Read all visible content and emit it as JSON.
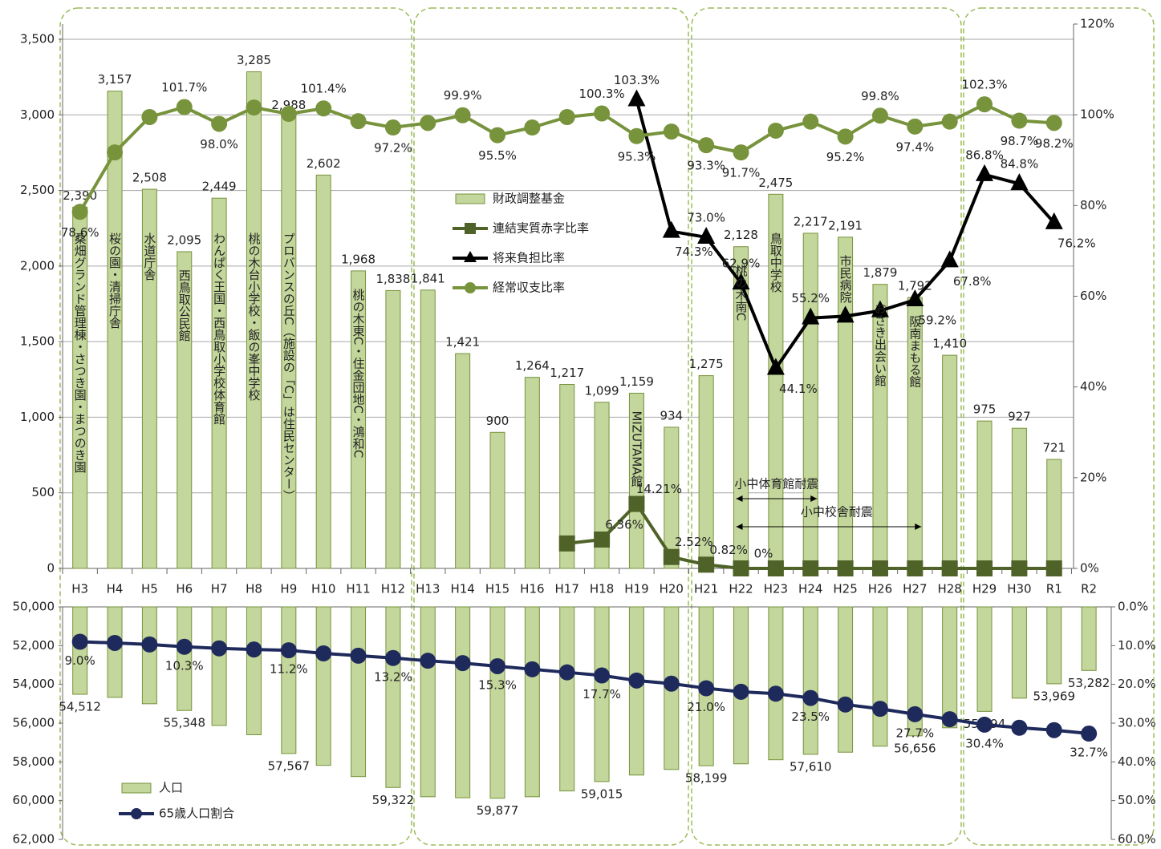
{
  "chart_data": [
    {
      "type": "combo",
      "categories": [
        "H3",
        "H4",
        "H5",
        "H6",
        "H7",
        "H8",
        "H9",
        "H10",
        "H11",
        "H12",
        "H13",
        "H14",
        "H15",
        "H16",
        "H17",
        "H18",
        "H19",
        "H20",
        "H21",
        "H22",
        "H23",
        "H24",
        "H25",
        "H26",
        "H27",
        "H28",
        "H29",
        "H30",
        "R1",
        "R2"
      ],
      "ylim": [
        0,
        3500
      ],
      "yticks": [
        0,
        500,
        {
          "value": 1000,
          "label": "1,000"
        },
        {
          "value": 1500,
          "label": "1,500"
        },
        {
          "value": 2000,
          "label": "2,000"
        },
        {
          "value": 2500,
          "label": "2,500"
        },
        {
          "value": 3000,
          "label": "3,000"
        },
        {
          "value": 3500,
          "label": "3,500"
        }
      ],
      "y2lim": [
        0,
        120
      ],
      "y2ticks": [
        {
          "value": 0,
          "label": "0%"
        },
        {
          "value": 20,
          "label": "20%"
        },
        {
          "value": 40,
          "label": "40%"
        },
        {
          "value": 60,
          "label": "60%"
        },
        {
          "value": 80,
          "label": "80%"
        },
        {
          "value": 100,
          "label": "100%"
        },
        {
          "value": 120,
          "label": "120%"
        }
      ],
      "grid": true,
      "legend": "center",
      "series": [
        {
          "name": "財政調整基金",
          "kind": "bar",
          "color": "#c3d69b",
          "values": [
            2390,
            3157,
            2508,
            2095,
            2449,
            3285,
            2988,
            2602,
            1968,
            1838,
            1841,
            1421,
            900,
            1264,
            1217,
            1099,
            1159,
            934,
            1275,
            2128,
            2475,
            2217,
            2191,
            1879,
            1792,
            1410,
            975,
            927,
            721,
            null
          ],
          "value_labels": [
            "2,390",
            "3,157",
            "2,508",
            "2,095",
            "2,449",
            "3,285",
            "2,988",
            "2,602",
            "1,968",
            "1,838",
            "1,841",
            "1,421",
            "900",
            "1,264",
            "1,217",
            "1,099",
            "1,159",
            "934",
            "1,275",
            "2,128",
            "2,475",
            "2,217",
            "2,191",
            "1,879",
            "1,792",
            "1,410",
            "975",
            "927",
            "721",
            null
          ]
        },
        {
          "name": "連結実質赤字比率",
          "kind": "line",
          "marker": "square",
          "axis": "y2",
          "color": "#4f6228",
          "values": [
            null,
            null,
            null,
            null,
            null,
            null,
            null,
            null,
            null,
            null,
            null,
            null,
            null,
            null,
            5.5,
            6.36,
            14.21,
            2.52,
            0.82,
            0,
            0,
            0,
            0,
            0,
            0,
            0,
            0,
            0,
            0,
            null
          ],
          "value_labels": [
            null,
            null,
            null,
            null,
            null,
            null,
            null,
            null,
            null,
            null,
            null,
            null,
            null,
            null,
            null,
            "6.36%",
            "14.21%",
            "2.52%",
            "0.82%",
            "0%",
            null,
            null,
            null,
            null,
            null,
            null,
            null,
            null,
            null,
            null
          ]
        },
        {
          "name": "将来負担比率",
          "kind": "line",
          "marker": "triangle",
          "axis": "y2",
          "color": "#000000",
          "values": [
            null,
            null,
            null,
            null,
            null,
            null,
            null,
            null,
            null,
            null,
            null,
            null,
            null,
            null,
            null,
            null,
            103.3,
            74.3,
            73.0,
            62.9,
            44.1,
            55.2,
            55.6,
            56.8,
            59.2,
            67.8,
            86.8,
            84.8,
            76.2,
            null
          ],
          "value_labels": [
            null,
            null,
            null,
            null,
            null,
            null,
            null,
            null,
            null,
            null,
            null,
            null,
            null,
            null,
            null,
            null,
            "103.3%",
            "74.3%",
            "73.0%",
            "62.9%",
            "44.1%",
            "55.2%",
            null,
            null,
            "59.2%",
            "67.8%",
            "86.8%",
            "84.8%",
            "76.2%",
            null
          ]
        },
        {
          "name": "経常収支比率",
          "kind": "line",
          "marker": "circle",
          "axis": "y2",
          "color": "#77933c",
          "values": [
            78.6,
            91.7,
            99.5,
            101.7,
            98.0,
            101.6,
            100.2,
            101.4,
            98.6,
            97.2,
            98.2,
            99.9,
            95.5,
            97.2,
            99.5,
            100.3,
            95.3,
            96.3,
            93.3,
            91.7,
            96.5,
            98.5,
            95.2,
            99.8,
            97.4,
            98.5,
            102.3,
            98.7,
            98.2,
            null
          ],
          "value_labels": [
            "78.6%",
            null,
            null,
            "101.7%",
            "98.0%",
            null,
            null,
            "101.4%",
            null,
            "97.2%",
            null,
            "99.9%",
            "95.5%",
            null,
            null,
            "100.3%",
            "95.3%",
            null,
            "93.3%",
            "91.7%",
            null,
            null,
            "95.2%",
            "99.8%",
            "97.4%",
            null,
            "102.3%",
            "98.7%",
            "98.2%",
            null
          ]
        }
      ],
      "bar_notes": [
        {
          "category": "H3",
          "text": "桑畑グランド管理棟・さつき園・まつのき園"
        },
        {
          "category": "H4",
          "text": "桜の園・清掃庁舎"
        },
        {
          "category": "H5",
          "text": "水道庁舎"
        },
        {
          "category": "H6",
          "text": "西鳥取公民館"
        },
        {
          "category": "H7",
          "text": "わんぱく王国・西鳥取小学校体育館"
        },
        {
          "category": "H8",
          "text": "桃の木台小学校・飯の峯中学校"
        },
        {
          "category": "H9",
          "text": "プロバンスの丘C（施設の「C」は住民センター）"
        },
        {
          "category": "H11",
          "text": "桃の木東C・住金団地C・鴻和C"
        },
        {
          "category": "H19",
          "text": "MIZUTAMA館"
        },
        {
          "category": "H22",
          "text": "桃の木南C"
        },
        {
          "category": "H23",
          "text": "鳥取中学校"
        },
        {
          "category": "H25",
          "text": "市民病院"
        },
        {
          "category": "H26",
          "text": "おさき出会い館"
        },
        {
          "category": "H27",
          "text": "阪南まもる館"
        }
      ],
      "spans": [
        {
          "text": "小中体育館耐震",
          "from": "H22",
          "to": "H24"
        },
        {
          "text": "小中校舎耐震",
          "from": "H22",
          "to": "H27"
        }
      ]
    },
    {
      "type": "combo",
      "inverted": true,
      "ylim": [
        50000,
        62000
      ],
      "yticks": [
        {
          "value": 50000,
          "label": "50,000"
        },
        {
          "value": 52000,
          "label": "52,000"
        },
        {
          "value": 54000,
          "label": "54,000"
        },
        {
          "value": 56000,
          "label": "56,000"
        },
        {
          "value": 58000,
          "label": "58,000"
        },
        {
          "value": 60000,
          "label": "60,000"
        },
        {
          "value": 62000,
          "label": "62,000"
        }
      ],
      "y2lim": [
        0,
        60
      ],
      "y2ticks": [
        {
          "value": 0,
          "label": "0.0%"
        },
        {
          "value": 10,
          "label": "10.0%"
        },
        {
          "value": 20,
          "label": "20.0%"
        },
        {
          "value": 30,
          "label": "30.0%"
        },
        {
          "value": 40,
          "label": "40.0%"
        },
        {
          "value": 50,
          "label": "50.0%"
        },
        {
          "value": 60,
          "label": "60.0%"
        }
      ],
      "legend": "lower left",
      "series": [
        {
          "name": "人口",
          "kind": "bar",
          "color": "#c3d69b",
          "values": [
            54512,
            54670,
            55000,
            55348,
            56120,
            56600,
            57567,
            58180,
            58760,
            59322,
            59800,
            59850,
            59877,
            59800,
            59500,
            59015,
            58680,
            58390,
            58199,
            58100,
            57890,
            57610,
            57500,
            57190,
            56656,
            56240,
            55394,
            54710,
            53969,
            53282
          ],
          "value_labels": [
            "54,512",
            null,
            null,
            "55,348",
            null,
            null,
            "57,567",
            null,
            null,
            "59,322",
            null,
            null,
            "59,877",
            null,
            null,
            "59,015",
            null,
            null,
            "58,199",
            null,
            null,
            "57,610",
            null,
            null,
            "56,656",
            null,
            "55,394",
            null,
            "53,969",
            "53,282"
          ]
        },
        {
          "name": "65歳人口割合",
          "kind": "line",
          "marker": "circle",
          "axis": "y2",
          "color": "#1f2a5c",
          "values": [
            9.0,
            9.3,
            9.7,
            10.3,
            10.7,
            11.0,
            11.2,
            12.0,
            12.6,
            13.2,
            13.9,
            14.5,
            15.3,
            16.1,
            16.9,
            17.7,
            19.0,
            19.8,
            21.0,
            21.9,
            22.4,
            23.5,
            25.2,
            26.3,
            27.7,
            29.0,
            30.4,
            31.2,
            31.8,
            32.7
          ],
          "value_labels": [
            "9.0%",
            null,
            null,
            "10.3%",
            null,
            null,
            "11.2%",
            null,
            null,
            "13.2%",
            null,
            null,
            "15.3%",
            null,
            null,
            "17.7%",
            null,
            null,
            "21.0%",
            null,
            null,
            "23.5%",
            null,
            null,
            "27.7%",
            null,
            "30.4%",
            null,
            null,
            "32.7%"
          ]
        }
      ]
    }
  ]
}
